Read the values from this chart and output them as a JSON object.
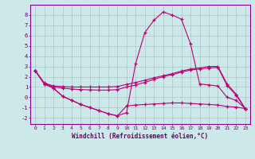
{
  "xlabel": "Windchill (Refroidissement éolien,°C)",
  "bg_color": "#cce8e8",
  "grid_color": "#a8c8c8",
  "line_color": "#bb0077",
  "xlim": [
    -0.5,
    23.5
  ],
  "ylim": [
    -2.6,
    9.0
  ],
  "xticks": [
    0,
    1,
    2,
    3,
    4,
    5,
    6,
    7,
    8,
    9,
    10,
    11,
    12,
    13,
    14,
    15,
    16,
    17,
    18,
    19,
    20,
    21,
    22,
    23
  ],
  "yticks": [
    -2,
    -1,
    0,
    1,
    2,
    3,
    4,
    5,
    6,
    7,
    8
  ],
  "x": [
    0,
    1,
    2,
    3,
    4,
    5,
    6,
    7,
    8,
    9,
    10,
    11,
    12,
    13,
    14,
    15,
    16,
    17,
    18,
    19,
    20,
    21,
    22,
    23
  ],
  "line_upper_y": [
    2.6,
    1.4,
    1.1,
    1.05,
    1.0,
    1.0,
    1.0,
    1.0,
    1.0,
    1.05,
    1.25,
    1.45,
    1.65,
    1.9,
    2.1,
    2.3,
    2.55,
    2.75,
    2.85,
    3.0,
    3.0,
    1.3,
    0.3,
    -1.1
  ],
  "line_mid_y": [
    2.6,
    1.35,
    1.0,
    0.9,
    0.8,
    0.75,
    0.72,
    0.7,
    0.7,
    0.75,
    1.0,
    1.2,
    1.45,
    1.75,
    2.0,
    2.2,
    2.45,
    2.65,
    2.75,
    2.85,
    2.9,
    1.15,
    0.2,
    -1.15
  ],
  "line_peak_y": [
    2.6,
    1.3,
    0.9,
    0.1,
    -0.3,
    -0.7,
    -1.0,
    -1.3,
    -1.6,
    -1.8,
    -1.5,
    3.3,
    6.3,
    7.5,
    8.3,
    8.0,
    7.6,
    5.2,
    1.3,
    1.2,
    1.1,
    0.0,
    -0.3,
    -1.1
  ],
  "line_lower_y": [
    2.6,
    1.3,
    0.9,
    0.1,
    -0.3,
    -0.7,
    -1.0,
    -1.3,
    -1.6,
    -1.8,
    -0.85,
    -0.75,
    -0.7,
    -0.65,
    -0.6,
    -0.55,
    -0.55,
    -0.6,
    -0.65,
    -0.7,
    -0.75,
    -0.9,
    -0.95,
    -1.1
  ]
}
